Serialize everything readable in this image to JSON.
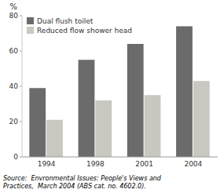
{
  "chart_data": {
    "type": "bar",
    "y_label": "%",
    "categories": [
      "1994",
      "1998",
      "2001",
      "2004"
    ],
    "series": [
      {
        "name": "Dual flush toilet",
        "color": "#6b6b6b",
        "values": [
          39,
          55,
          64,
          74
        ]
      },
      {
        "name": "Reduced flow shower head",
        "color": "#c8c8c0",
        "values": [
          21,
          32,
          35,
          43
        ]
      }
    ],
    "ylim": [
      0,
      80
    ],
    "yticks": [
      0,
      20,
      40,
      60,
      80
    ],
    "grid": false,
    "legend": "upper-left",
    "annotations": [
      "Source:  Envronmental Issues: People's Views and\nPractices,  March 2004 (ABS cat. no. 4602.0)."
    ]
  }
}
